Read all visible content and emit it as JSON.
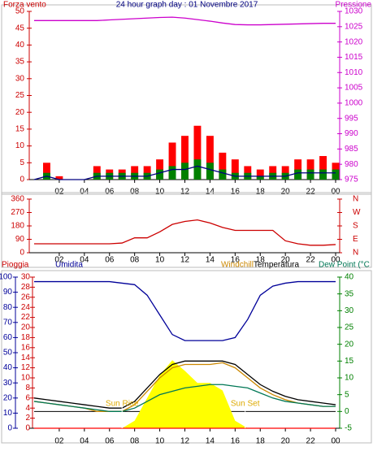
{
  "chart_data": [
    {
      "type": "combo",
      "title": "24 hour graph day : 01 Novembre 2017",
      "ylabel": "Forza vento",
      "y2label": "Pressione",
      "x": [
        0,
        1,
        2,
        3,
        4,
        5,
        6,
        7,
        8,
        9,
        10,
        11,
        12,
        13,
        14,
        15,
        16,
        17,
        18,
        19,
        20,
        21,
        22,
        23,
        24
      ],
      "xlim": [
        0,
        24
      ],
      "xticks": [
        {
          "value": 2,
          "label": "02"
        },
        {
          "value": 4,
          "label": "04"
        },
        {
          "value": 6,
          "label": "06"
        },
        {
          "value": 8,
          "label": "08"
        },
        10,
        12,
        14,
        16,
        18,
        20,
        22,
        {
          "value": 24,
          "label": "00"
        }
      ],
      "ylim": [
        0,
        50
      ],
      "yticks": [
        0,
        5,
        10,
        15,
        20,
        25,
        30,
        35,
        40,
        45,
        50
      ],
      "ycolor": "#cc0000",
      "y2lim": [
        975,
        1030
      ],
      "y2ticks": [
        975,
        980,
        985,
        990,
        995,
        1000,
        1005,
        1010,
        1015,
        1020,
        1025,
        1030
      ],
      "y2color": "#cc00cc",
      "series": [
        {
          "type": "bar",
          "color": "#ff0000",
          "values": [
            0,
            5,
            1,
            0,
            0,
            4,
            3,
            3,
            4,
            4,
            6,
            11,
            13,
            16,
            13,
            8,
            6,
            4,
            3,
            4,
            4,
            6,
            6,
            7,
            5
          ]
        },
        {
          "type": "bar",
          "color": "#008000",
          "values": [
            0,
            2,
            0,
            0,
            0,
            2,
            2,
            2,
            2,
            2,
            3,
            4,
            5,
            6,
            5,
            3,
            2,
            2,
            1,
            2,
            2,
            3,
            3,
            3,
            3
          ]
        },
        {
          "type": "line",
          "color": "#000080",
          "values": [
            0,
            1,
            0,
            0,
            0,
            1,
            1,
            1,
            1,
            1,
            2,
            3,
            3,
            4,
            3,
            2,
            1,
            1,
            1,
            1,
            1,
            2,
            2,
            2,
            2
          ]
        },
        {
          "type": "line",
          "axis": "y2",
          "color": "#cc00cc",
          "values": [
            1027,
            1027,
            1027,
            1027,
            1027,
            1027,
            1027.2,
            1027.4,
            1027.6,
            1027.8,
            1028,
            1028.1,
            1027.8,
            1027.3,
            1026.8,
            1026.2,
            1025.7,
            1025.6,
            1025.6,
            1025.7,
            1025.8,
            1025.9,
            1026,
            1026.1,
            1026.1
          ]
        }
      ]
    },
    {
      "type": "combo",
      "x": [
        0,
        1,
        2,
        3,
        4,
        5,
        6,
        7,
        8,
        9,
        10,
        11,
        12,
        13,
        14,
        15,
        16,
        17,
        18,
        19,
        20,
        21,
        22,
        23,
        24
      ],
      "xlim": [
        0,
        24
      ],
      "xticks": [
        {
          "value": 2,
          "label": "02"
        },
        {
          "value": 4,
          "label": "04"
        },
        {
          "value": 6,
          "label": "06"
        },
        {
          "value": 8,
          "label": "08"
        },
        10,
        12,
        14,
        16,
        18,
        20,
        22,
        {
          "value": 24,
          "label": "00"
        }
      ],
      "ylim": [
        0,
        360
      ],
      "yticks": [
        0,
        90,
        180,
        270,
        360
      ],
      "ycolor": "#cc0000",
      "y2lim": [
        0,
        360
      ],
      "y2ticks": [
        {
          "value": 0,
          "label": "N"
        },
        {
          "value": 90,
          "label": "E"
        },
        {
          "value": 180,
          "label": "S"
        },
        {
          "value": 270,
          "label": "W"
        },
        {
          "value": 360,
          "label": "N"
        }
      ],
      "y2color": "#cc0000",
      "series": [
        {
          "type": "line",
          "color": "#cc0000",
          "values": [
            60,
            60,
            60,
            60,
            60,
            60,
            60,
            65,
            100,
            100,
            140,
            190,
            210,
            220,
            200,
            170,
            150,
            150,
            150,
            150,
            80,
            60,
            50,
            50,
            55
          ]
        }
      ]
    },
    {
      "type": "combo",
      "ylabel": "Umidita",
      "y3label": "Pioggia",
      "x": [
        0,
        1,
        2,
        3,
        4,
        5,
        6,
        7,
        8,
        9,
        10,
        11,
        12,
        13,
        14,
        15,
        16,
        17,
        18,
        19,
        20,
        21,
        22,
        23,
        24
      ],
      "xlim": [
        0,
        24
      ],
      "xticks": [
        {
          "value": 2,
          "label": "02"
        },
        {
          "value": 4,
          "label": "04"
        },
        {
          "value": 6,
          "label": "06"
        },
        {
          "value": 8,
          "label": "08"
        },
        10,
        12,
        14,
        16,
        18,
        20,
        22,
        {
          "value": 24,
          "label": "00"
        }
      ],
      "ylim": [
        0,
        100
      ],
      "yticks": [
        0,
        10,
        20,
        30,
        40,
        50,
        60,
        70,
        80,
        90,
        100
      ],
      "ycolor": "#000099",
      "y2lim": [
        -5,
        40
      ],
      "y2ticks": [
        -5,
        0,
        5,
        10,
        15,
        20,
        25,
        30,
        35,
        40
      ],
      "y2color": "#008000",
      "y3lim": [
        0,
        30
      ],
      "y3ticks": [
        0,
        2,
        4,
        6,
        8,
        10,
        12,
        14,
        16,
        18,
        20,
        22,
        24,
        26,
        28,
        30
      ],
      "y3color": "#cc0000",
      "annotations": [
        {
          "text": "Sun Rise",
          "x": 7
        },
        {
          "text": "Sun Set",
          "x": 16.8
        }
      ],
      "series": [
        {
          "type": "area",
          "color": "#ffff00",
          "values": [
            0,
            0,
            0,
            0,
            0,
            0,
            0,
            0,
            5,
            20,
            35,
            45,
            38,
            30,
            30,
            25,
            5,
            0,
            0,
            0,
            0,
            0,
            0,
            0,
            0
          ]
        },
        {
          "type": "line",
          "axis": "y3",
          "color": "#ff0000",
          "values": [
            0,
            0,
            0,
            0,
            0,
            0,
            0,
            0,
            0,
            0,
            0,
            0,
            0,
            0,
            0,
            0,
            0,
            0,
            0,
            0,
            0,
            0,
            0,
            0,
            0
          ]
        },
        {
          "type": "line",
          "color": "#000099",
          "values": [
            97,
            97,
            97,
            97,
            97,
            97,
            97,
            96,
            95,
            88,
            75,
            62,
            58,
            58,
            58,
            58,
            60,
            72,
            88,
            94,
            96,
            97,
            97,
            97,
            97
          ]
        },
        {
          "type": "line",
          "axis": "y2",
          "name": "Windchill",
          "color": "#cc8800",
          "values": [
            3,
            2.5,
            2,
            1.5,
            1,
            0,
            0,
            0,
            2,
            6,
            10,
            13,
            14,
            14,
            14,
            14.5,
            13,
            10,
            7,
            5,
            3.5,
            2.5,
            2,
            1.5,
            1.5
          ]
        },
        {
          "type": "line",
          "axis": "y2",
          "name": "Temperatura",
          "color": "#000000",
          "values": [
            4,
            3.5,
            3,
            2.5,
            2,
            1.5,
            1,
            1,
            3,
            7,
            11,
            14,
            15,
            15,
            15,
            15,
            14,
            11,
            8,
            6,
            4.5,
            3.5,
            3,
            2.5,
            2
          ]
        },
        {
          "type": "line",
          "axis": "y2",
          "name": "Dew Point (°C",
          "color": "#007755",
          "values": [
            3,
            2.5,
            2,
            1.5,
            1,
            0.5,
            0,
            0,
            1,
            3,
            5,
            6,
            7,
            7.5,
            8,
            8,
            7.5,
            7,
            5.5,
            4,
            3,
            2.5,
            2,
            1.5,
            1.5
          ]
        }
      ]
    }
  ]
}
